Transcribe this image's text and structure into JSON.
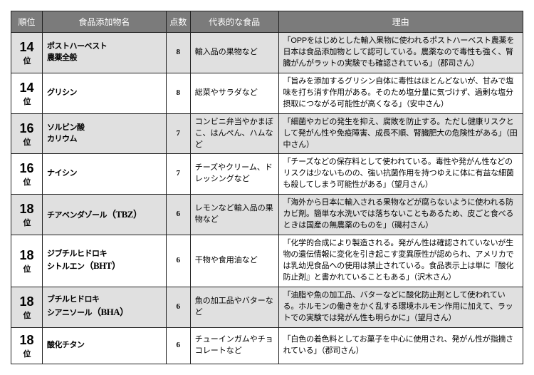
{
  "headers": {
    "rank": "順位",
    "name": "食品添加物名",
    "score": "点数",
    "food": "代表的な食品",
    "reason": "理由"
  },
  "rows": [
    {
      "rank_num": "14",
      "rank_suffix": "位",
      "name": "ポストハーベスト\n農薬全般",
      "score": "8",
      "food": "輸入品の果物など",
      "reason": "「OPPをはじめとした輸入果物に使われるポストハーベスト農薬を日本は食品添加物として認可している。農薬なので毒性も強く、腎臓がんがラットの実験でも確認されている」（郡司さん）"
    },
    {
      "rank_num": "14",
      "rank_suffix": "位",
      "name": "グリシン",
      "score": "8",
      "food": "総菜やサラダなど",
      "reason": "「旨みを添加するグリシン自体に毒性はほとんどないが、甘みで塩味を打ち消す作用がある。そのため塩分量に気づけず、過剰な塩分摂取につながる可能性が高くなる」（安中さん）"
    },
    {
      "rank_num": "16",
      "rank_suffix": "位",
      "name": "ソルビン酸\nカリウム",
      "score": "7",
      "food": "コンビニ弁当やかまぼこ、はんぺん、ハムなど",
      "reason": "「細菌やカビの発生を抑え、腐敗を防止する。ただし健康リスクとして発がん性や免疫障害、成長不順、腎臓肥大の危険性がある」（田中さん）"
    },
    {
      "rank_num": "16",
      "rank_suffix": "位",
      "name": "ナイシン",
      "score": "7",
      "food": "チーズやクリーム、ドレッシングなど",
      "reason": "「チーズなどの保存料として使われている。毒性や発がん性などのリスクは少ないものの、強い抗菌作用を持つゆえに体に有益な細菌も殺してしまう可能性がある」（望月さん）"
    },
    {
      "rank_num": "18",
      "rank_suffix": "位",
      "name": "チアベンダゾール",
      "name_sub": "（TBZ）",
      "score": "6",
      "food": "レモンなど輸入品の果物など",
      "reason": "「海外から日本に輸入される果物などが腐らないように使われる防カビ剤。簡単な水洗いでは落ちないこともあるため、皮ごと食べるときは国産の無農薬のものを」（磯村さん）"
    },
    {
      "rank_num": "18",
      "rank_suffix": "位",
      "name": "ジブチルヒドロキ\nシトルエン",
      "name_sub": "（BHT）",
      "score": "6",
      "food": "干物や食用油など",
      "reason": "「化学的合成により製造される。発がん性は確認されていないが生物の遺伝情報に変化を引き起こす変異原性が認められ、アメリカでは乳幼児食品への使用は禁止されている。食品表示上は単に『酸化防止剤』と書かれていることもある」（沢木さん）"
    },
    {
      "rank_num": "18",
      "rank_suffix": "位",
      "name": "ブチルヒドロキ\nシアニソール",
      "name_sub": "（BHA）",
      "score": "6",
      "food": "魚の加工品やバターなど",
      "reason": "「油脂や魚の加工品、バターなどに酸化防止剤として使われている。ホルモンの働きをかく乱する環境ホルモン作用に加えて、ラットでの実験では発がん性も明らかに」（望月さん）"
    },
    {
      "rank_num": "18",
      "rank_suffix": "位",
      "name": "酸化チタン",
      "score": "6",
      "food": "チューインガムやチョコレートなど",
      "reason": "「白色の着色料としてお菓子を中心に使用され、発がん性が指摘されている」（郡司さん）"
    }
  ]
}
